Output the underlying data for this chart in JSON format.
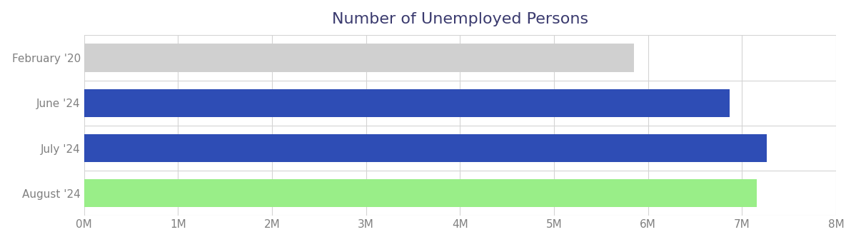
{
  "title": "Number of Unemployed Persons",
  "title_color": "#3a3a6e",
  "title_fontsize": 16,
  "categories": [
    "February '20",
    "June '24",
    "July '24",
    "August '24"
  ],
  "values": [
    5850000,
    6870000,
    7260000,
    7160000
  ],
  "bar_colors": [
    "#d0d0d0",
    "#2e4db5",
    "#2e4db5",
    "#99ee88"
  ],
  "xlim": [
    0,
    8000000
  ],
  "xticks": [
    0,
    1000000,
    2000000,
    3000000,
    4000000,
    5000000,
    6000000,
    7000000,
    8000000
  ],
  "xtick_labels": [
    "0M",
    "1M",
    "2M",
    "3M",
    "4M",
    "5M",
    "6M",
    "7M",
    "8M"
  ],
  "background_color": "#ffffff",
  "grid_color": "#d4d4d4",
  "label_color": "#808080",
  "bar_height": 0.62
}
